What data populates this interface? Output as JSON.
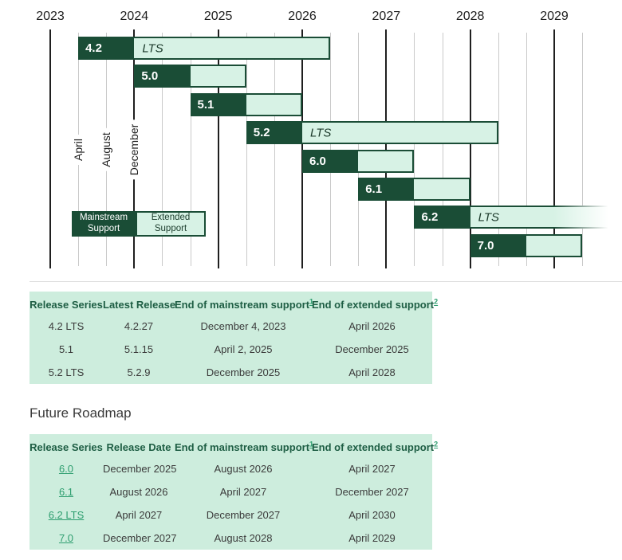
{
  "colors": {
    "mainstream": "#1A4D36",
    "extended": "#D7F2E5",
    "table_background": "#CDEDDD",
    "table_header_text": "#1E5E44",
    "link_green": "#2E9E6F",
    "year_line": "#1F1F1F",
    "minor_line": "#C9C9C9"
  },
  "chart_data": {
    "type": "gantt",
    "title": "Release support timeline",
    "x_axis": {
      "years": [
        2023,
        2024,
        2025,
        2026,
        2027,
        2028,
        2029
      ],
      "minor_gridline_interval_months": 4,
      "month_labels": [
        {
          "label": "April",
          "t": 2023.3333
        },
        {
          "label": "August",
          "t": 2023.6667
        },
        {
          "label": "December",
          "t": 2024.0
        }
      ]
    },
    "legend": [
      {
        "label": "Mainstream Support",
        "style": "mainstream"
      },
      {
        "label": "Extended Support",
        "style": "extended"
      }
    ],
    "bars": [
      {
        "version": "4.2",
        "lts_label": "LTS",
        "start": 2023.3333,
        "mainstream_end": 2024.0,
        "extended_end": 2026.3333,
        "fade_out": false
      },
      {
        "version": "5.0",
        "lts_label": "",
        "start": 2024.0,
        "mainstream_end": 2024.6667,
        "extended_end": 2025.3333,
        "fade_out": false
      },
      {
        "version": "5.1",
        "lts_label": "",
        "start": 2024.6667,
        "mainstream_end": 2025.3333,
        "extended_end": 2026.0,
        "fade_out": false
      },
      {
        "version": "5.2",
        "lts_label": "LTS",
        "start": 2025.3333,
        "mainstream_end": 2026.0,
        "extended_end": 2028.3333,
        "fade_out": false
      },
      {
        "version": "6.0",
        "lts_label": "",
        "start": 2026.0,
        "mainstream_end": 2026.6667,
        "extended_end": 2027.3333,
        "fade_out": false
      },
      {
        "version": "6.1",
        "lts_label": "",
        "start": 2026.6667,
        "mainstream_end": 2027.3333,
        "extended_end": 2028.0,
        "fade_out": false
      },
      {
        "version": "6.2",
        "lts_label": "LTS",
        "start": 2027.3333,
        "mainstream_end": 2028.0,
        "extended_end": 2030.3333,
        "fade_out": true
      },
      {
        "version": "7.0",
        "lts_label": "",
        "start": 2028.0,
        "mainstream_end": 2028.6667,
        "extended_end": 2029.3333,
        "fade_out": false
      }
    ]
  },
  "current_table": {
    "headers": [
      {
        "label": "Release Series",
        "sup": ""
      },
      {
        "label": "Latest Release",
        "sup": ""
      },
      {
        "label": "End of mainstream support",
        "sup": "1"
      },
      {
        "label": "End of extended support",
        "sup": "2"
      }
    ],
    "rows": [
      {
        "cells": [
          "4.2 LTS",
          "4.2.27",
          "December 4, 2023",
          "April 2026"
        ]
      },
      {
        "cells": [
          "5.1",
          "5.1.15",
          "April 2, 2025",
          "December 2025"
        ]
      },
      {
        "cells": [
          "5.2 LTS",
          "5.2.9",
          "December 2025",
          "April 2028"
        ]
      }
    ]
  },
  "future": {
    "heading": "Future Roadmap",
    "table": {
      "headers": [
        {
          "label": "Release Series",
          "sup": ""
        },
        {
          "label": "Release Date",
          "sup": ""
        },
        {
          "label": "End of mainstream support",
          "sup": "1"
        },
        {
          "label": "End of extended support",
          "sup": "2"
        }
      ],
      "rows": [
        {
          "link": "6.0",
          "cells": [
            "December 2025",
            "August 2026",
            "April 2027"
          ]
        },
        {
          "link": "6.1",
          "cells": [
            "August 2026",
            "April 2027",
            "December 2027"
          ]
        },
        {
          "link": "6.2 LTS",
          "cells": [
            "April 2027",
            "December 2027",
            "April 2030"
          ]
        },
        {
          "link": "7.0",
          "cells": [
            "December 2027",
            "August 2028",
            "April 2029"
          ]
        }
      ]
    }
  }
}
